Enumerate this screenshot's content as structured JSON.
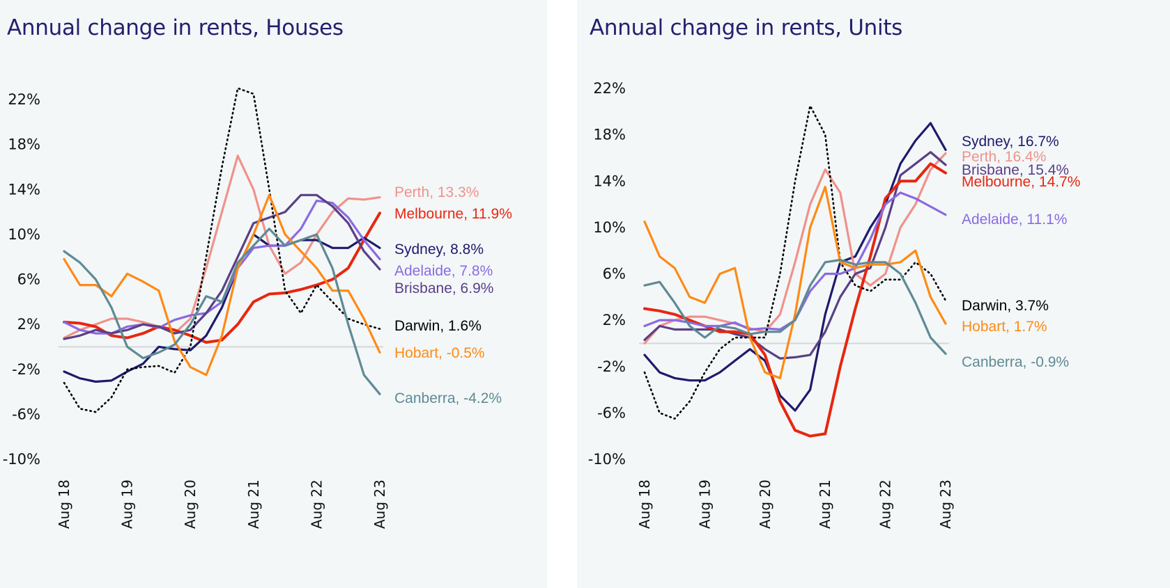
{
  "chart_data": [
    {
      "type": "line",
      "title": "Annual change in rents, Houses",
      "xlabel": "",
      "ylabel": "",
      "x": [
        "2018-08",
        "2018-11",
        "2019-02",
        "2019-05",
        "2019-08",
        "2019-11",
        "2020-02",
        "2020-05",
        "2020-08",
        "2020-11",
        "2021-02",
        "2021-05",
        "2021-08",
        "2021-11",
        "2022-02",
        "2022-05",
        "2022-08",
        "2022-11",
        "2023-02",
        "2023-05",
        "2023-08"
      ],
      "x_ticks": [
        "Aug 18",
        "Aug 19",
        "Aug 20",
        "Aug 21",
        "Aug 22",
        "Aug 23"
      ],
      "y_ticks": [
        "22%",
        "18%",
        "14%",
        "10%",
        "6%",
        "2%",
        "-2%",
        "-6%",
        "-10%"
      ],
      "ylim": [
        -10,
        22
      ],
      "zero_line": true,
      "grid": false,
      "legend": "direct labels at right end",
      "series": [
        {
          "name": "Perth",
          "label": "Perth, 13.3%",
          "color": "#f0928a",
          "style": "solid",
          "values": [
            0.8,
            1.5,
            2.0,
            2.5,
            2.5,
            2.2,
            1.8,
            1.2,
            2.5,
            7,
            12,
            17,
            14,
            9,
            6.5,
            7.5,
            10,
            12,
            13.2,
            13.1,
            13.3
          ]
        },
        {
          "name": "Melbourne",
          "label": "Melbourne, 11.9%",
          "color": "#e8260f",
          "style": "solid",
          "values": [
            2.2,
            2.1,
            1.8,
            1.0,
            0.8,
            1.2,
            1.8,
            1.5,
            1.0,
            0.4,
            0.6,
            2.0,
            4.0,
            4.7,
            4.8,
            5.1,
            5.5,
            6.0,
            7.0,
            9.5,
            11.9
          ]
        },
        {
          "name": "Sydney",
          "label": "Sydney, 8.8%",
          "color": "#1f1a6b",
          "style": "solid",
          "values": [
            -2.2,
            -2.8,
            -3.1,
            -3.0,
            -2.2,
            -1.5,
            0,
            -0.2,
            -0.3,
            1,
            3.5,
            7,
            10,
            9,
            9,
            9.5,
            9.5,
            8.8,
            8.8,
            9.7,
            8.8
          ]
        },
        {
          "name": "Adelaide",
          "label": "Adelaide, 7.8%",
          "color": "#8b6ae0",
          "style": "solid",
          "values": [
            2.2,
            1.5,
            1.2,
            1.2,
            1.8,
            2.0,
            1.7,
            2.4,
            2.8,
            3,
            4,
            7,
            8.8,
            9,
            9,
            10.5,
            13,
            12.8,
            11.5,
            9.5,
            7.8
          ]
        },
        {
          "name": "Brisbane",
          "label": "Brisbane, 6.9%",
          "color": "#5a3f86",
          "style": "solid",
          "values": [
            0.7,
            1.0,
            1.5,
            1.2,
            1.5,
            2.0,
            1.8,
            1.2,
            1.5,
            3,
            5,
            8,
            11,
            11.5,
            12,
            13.5,
            13.5,
            12.5,
            11,
            8.5,
            6.9
          ]
        },
        {
          "name": "Darwin",
          "label": "Darwin, 1.6%",
          "color": "#000000",
          "style": "dotted",
          "values": [
            -3.2,
            -5.5,
            -5.8,
            -4.5,
            -2,
            -1.8,
            -1.7,
            -2.3,
            0,
            8,
            16,
            23,
            22.5,
            14,
            5,
            3,
            5.5,
            4,
            2.5,
            2,
            1.6
          ]
        },
        {
          "name": "Hobart",
          "label": "Hobart, -0.5%",
          "color": "#ff8a14",
          "style": "solid",
          "values": [
            7.8,
            5.5,
            5.5,
            4.5,
            6.5,
            5.8,
            5.0,
            0.5,
            -1.8,
            -2.5,
            1,
            7,
            10,
            13.5,
            10,
            8.5,
            7.0,
            5,
            5,
            2.5,
            -0.5
          ]
        },
        {
          "name": "Canberra",
          "label": "Canberra, -4.2%",
          "color": "#5f8a94",
          "style": "solid",
          "values": [
            8.5,
            7.5,
            6,
            3.5,
            0,
            -1,
            -0.5,
            0.2,
            2,
            4.5,
            4,
            7.5,
            9,
            10.5,
            9,
            9.5,
            10,
            7,
            2,
            -2.5,
            -4.2
          ]
        }
      ]
    },
    {
      "type": "line",
      "title": "Annual change in rents, Units",
      "xlabel": "",
      "ylabel": "",
      "x": [
        "2018-08",
        "2018-11",
        "2019-02",
        "2019-05",
        "2019-08",
        "2019-11",
        "2020-02",
        "2020-05",
        "2020-08",
        "2020-11",
        "2021-02",
        "2021-05",
        "2021-08",
        "2021-11",
        "2022-02",
        "2022-05",
        "2022-08",
        "2022-11",
        "2023-02",
        "2023-05",
        "2023-08"
      ],
      "x_ticks": [
        "Aug 18",
        "Aug 19",
        "Aug 20",
        "Aug 21",
        "Aug 22",
        "Aug 23"
      ],
      "y_ticks": [
        "22%",
        "18%",
        "14%",
        "10%",
        "6%",
        "2%",
        "-2%",
        "-6%",
        "-10%"
      ],
      "ylim": [
        -10,
        22
      ],
      "zero_line": true,
      "grid": false,
      "legend": "direct labels at right end",
      "series": [
        {
          "name": "Sydney",
          "label": "Sydney, 16.7%",
          "color": "#1f1a6b",
          "style": "solid",
          "values": [
            -1,
            -2.5,
            -3.0,
            -3.2,
            -3.2,
            -2.5,
            -1.5,
            -0.5,
            -1.5,
            -4.5,
            -5.8,
            -4.0,
            2.5,
            7,
            7.5,
            10,
            12,
            15.5,
            17.5,
            19,
            16.7
          ]
        },
        {
          "name": "Perth",
          "label": "Perth, 16.4%",
          "color": "#f0928a",
          "style": "solid",
          "values": [
            0,
            1.5,
            2.0,
            2.3,
            2.3,
            2.0,
            1.7,
            1.3,
            1.0,
            2.5,
            7,
            12,
            15,
            13,
            6,
            5,
            6,
            10,
            12,
            15,
            16.4
          ]
        },
        {
          "name": "Brisbane",
          "label": "Brisbane, 15.4%",
          "color": "#5a3f86",
          "style": "solid",
          "values": [
            0.3,
            1.5,
            1.2,
            1.2,
            1.2,
            1.2,
            0.8,
            0.5,
            -0.5,
            -1.3,
            -1.2,
            -1,
            1,
            4,
            6,
            6.5,
            10,
            14.5,
            15.5,
            16.5,
            15.4
          ]
        },
        {
          "name": "Melbourne",
          "label": "Melbourne, 14.7%",
          "color": "#e8260f",
          "style": "solid",
          "values": [
            3.0,
            2.8,
            2.5,
            2.0,
            1.5,
            1.0,
            1.0,
            0.8,
            -1,
            -5,
            -7.5,
            -8,
            -7.8,
            -2,
            3,
            7.5,
            12.5,
            14,
            14,
            15.5,
            14.7
          ]
        },
        {
          "name": "Adelaide",
          "label": "Adelaide, 11.1%",
          "color": "#8b6ae0",
          "style": "solid",
          "values": [
            1.5,
            2.0,
            2.0,
            1.8,
            1.5,
            1.5,
            1.8,
            1.2,
            1.3,
            1.2,
            2.0,
            4.5,
            6,
            6,
            6.5,
            9,
            12,
            13,
            12.5,
            11.8,
            11.1
          ]
        },
        {
          "name": "Darwin",
          "label": "Darwin, 3.7%",
          "color": "#000000",
          "style": "dotted",
          "values": [
            -2.5,
            -6,
            -6.5,
            -5,
            -2.5,
            -0.5,
            0.5,
            0.5,
            0.5,
            6,
            14,
            20.5,
            18,
            7,
            5,
            4.5,
            5.5,
            5.5,
            7.0,
            6,
            3.7
          ]
        },
        {
          "name": "Hobart",
          "label": "Hobart, 1.7%",
          "color": "#ff8a14",
          "style": "solid",
          "values": [
            10.5,
            7.5,
            6.5,
            4.0,
            3.5,
            6.0,
            6.5,
            0.5,
            -2.5,
            -3,
            2.5,
            10,
            13.5,
            7,
            6.5,
            6.8,
            6.8,
            7,
            8,
            4,
            1.7
          ]
        },
        {
          "name": "Canberra",
          "label": "Canberra, -0.9%",
          "color": "#5f8a94",
          "style": "solid",
          "values": [
            5,
            5.3,
            3.5,
            1.5,
            0.5,
            1.5,
            1.3,
            0.8,
            1.0,
            1.0,
            2.0,
            5,
            7,
            7.2,
            6.8,
            7,
            7,
            6,
            3.5,
            0.5,
            -0.9
          ]
        }
      ]
    }
  ]
}
